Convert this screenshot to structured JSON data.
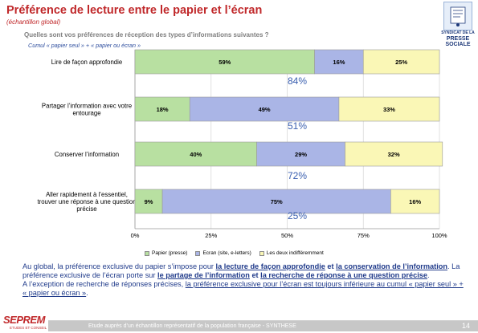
{
  "header": {
    "title": "Préférence de lecture entre le papier et l’écran",
    "subtitle": "(échantillon global)",
    "question": "Quelles sont vos préférences de réception des types d’informations suivantes ?",
    "cumul": "Cumul « papier seul » + « papier ou écran »"
  },
  "logo": {
    "line1": "SYNDICAT DE LA",
    "line2": "PRESSE",
    "line3": "SOCIALE"
  },
  "chart_data": {
    "type": "bar",
    "orientation": "horizontal",
    "stacked": true,
    "categories": [
      "Lire de façon approfondie",
      "Partager l’information avec votre entourage",
      "Conserver l’information",
      "Aller rapidement à l’essentiel, trouver une réponse à une question précise"
    ],
    "series": [
      {
        "name": "Papier (presse)",
        "values": [
          59,
          18,
          40,
          9
        ],
        "labels": [
          "59%",
          "18%",
          "40%",
          "9%"
        ],
        "color": "#b8e0a1"
      },
      {
        "name": "Ecran (site, e-letters)",
        "values": [
          16,
          49,
          29,
          75
        ],
        "labels": [
          "16%",
          "49%",
          "29%",
          "75%"
        ],
        "color": "#aab5e6"
      },
      {
        "name": "Les deux indifféremment",
        "values": [
          25,
          33,
          32,
          16
        ],
        "labels": [
          "25%",
          "33%",
          "32%",
          "16%"
        ],
        "color": "#faf7b6"
      }
    ],
    "cumul_labels": [
      "84%",
      "51%",
      "72%",
      "25%"
    ],
    "xticks": [
      "0%",
      "25%",
      "50%",
      "75%",
      "100%"
    ],
    "xlim": [
      0,
      100
    ],
    "grid": true,
    "legend": "bottom"
  },
  "summary": {
    "p1_a": "Au global, la préférence exclusive du papier s’impose pour ",
    "p1_b": "la lecture de façon approfondie",
    "p1_c": " et ",
    "p1_d": "la conservation de l’information",
    "p1_e": ". La préférence exclusive de l’écran porte sur ",
    "p1_f": "le partage de l’information",
    "p1_g": " et ",
    "p1_h": "la recherche de réponse à une question précise",
    "p1_i": ".",
    "p2_a": "A l’exception de recherche de réponses précises, ",
    "p2_b": "la préférence exclusive pour l’écran est toujours inférieure au cumul « papier seul » + « papier ou écran »",
    "p2_c": "."
  },
  "footer": {
    "brand": "SEPREM",
    "brand_sub": "ETUDES ET CONSEIL",
    "text": "Etude auprès d’un échantillon représentatif de la population française - SYNTHESE",
    "page": "14"
  }
}
